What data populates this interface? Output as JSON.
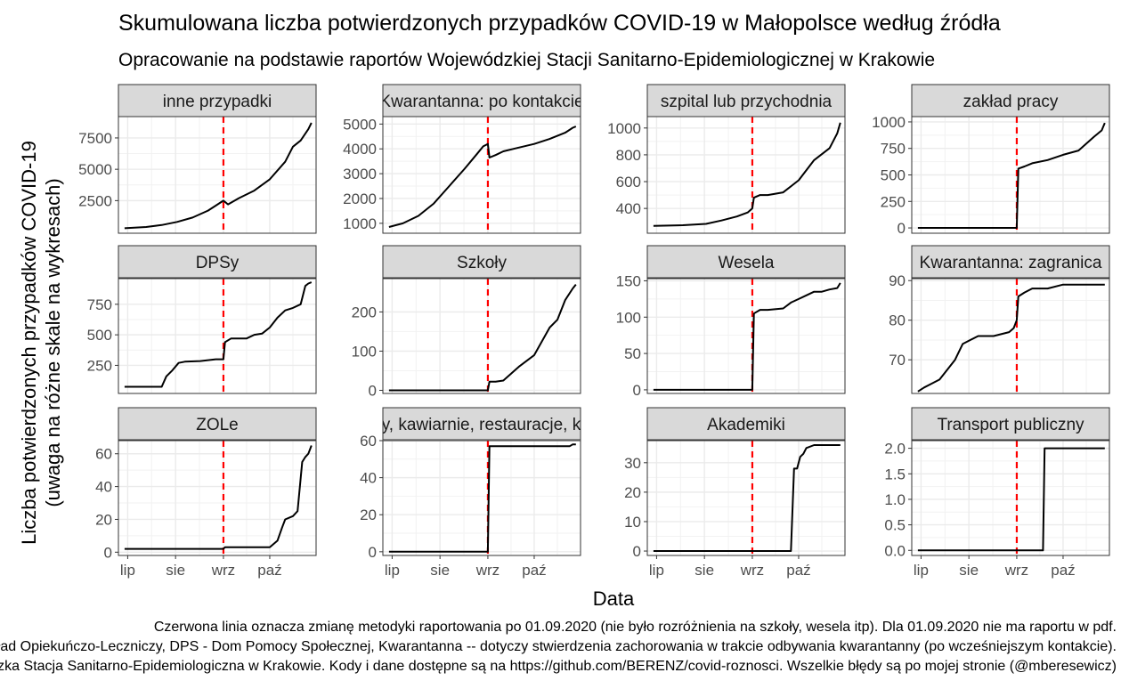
{
  "title": "Skumulowana liczba potwierdzonych przypadków COVID-19 w Małopolsce według źródła",
  "subtitle": "Opracowanie na podstawie raportów Wojewódzkiej Stacji Sanitarno-Epidemiologicznej w Krakowie",
  "xlabel": "Data",
  "ylabel_line1": "Liczba potwierdzonych przypadków COVID-19",
  "ylabel_line2": "(uwaga na różne skale na wykresach)",
  "caption_lines": [
    "Czerwona linia oznacza zmianę metodyki raportowania po 01.09.2020 (nie było rozróżnienia na szkoły, wesela itp). Dla 01.09.2020 nie ma raportu w pdf.",
    "ZOL - Zakład Opiekuńczo-Leczniczy, DPS - Dom Pomocy Społecznej, Kwarantanna -- dotyczy stwierdzenia zachorowania w trakcie odbywania kwarantanny (po wcześniejszym kontakcie).",
    "Źródło: Wojewódzka Stacja Sanitarno-Epidemiologiczna w Krakowie. Kody i dane dostępne są na https://github.com/BERENZ/covid-roznosci. Wszelkie błędy są po mojej stronie (@mberesewicz)"
  ],
  "x_ticks": [
    "lip",
    "sie",
    "wrz",
    "paź"
  ],
  "colors": {
    "line": "#000000",
    "vline": "#ff0000",
    "strip": "#d9d9d9",
    "grid": "#ebebeb"
  },
  "chart_data": {
    "type": "line",
    "x_unit": "day of year 2020",
    "x_range": [
      177,
      305
    ],
    "x_tick_positions": [
      183,
      214,
      245,
      275
    ],
    "vline_x": 245,
    "panels": [
      {
        "name": "inne przypadki",
        "yticks": [
          2500,
          5000,
          7500
        ],
        "ylim": [
          -100,
          9200
        ],
        "x": [
          181,
          195,
          205,
          215,
          225,
          235,
          240,
          245,
          248,
          255,
          265,
          275,
          285,
          290,
          295,
          300,
          302
        ],
        "y": [
          300,
          400,
          550,
          800,
          1150,
          1700,
          2100,
          2500,
          2200,
          2700,
          3300,
          4200,
          5600,
          6800,
          7300,
          8200,
          8700
        ]
      },
      {
        "name": "Kwarantanna: po kontakcie",
        "yticks": [
          1000,
          2000,
          3000,
          4000,
          5000
        ],
        "ylim": [
          600,
          5300
        ],
        "x": [
          181,
          190,
          200,
          210,
          220,
          230,
          238,
          242,
          245,
          246,
          250,
          255,
          265,
          275,
          285,
          295,
          300,
          302
        ],
        "y": [
          850,
          1000,
          1300,
          1800,
          2500,
          3200,
          3800,
          4100,
          4200,
          3650,
          3750,
          3900,
          4050,
          4200,
          4400,
          4650,
          4850,
          4900
        ]
      },
      {
        "name": "szpital lub przychodnia",
        "yticks": [
          400,
          600,
          800,
          1000
        ],
        "ylim": [
          215,
          1085
        ],
        "x": [
          181,
          200,
          215,
          225,
          235,
          242,
          245,
          246,
          250,
          255,
          265,
          275,
          285,
          295,
          300,
          302
        ],
        "y": [
          270,
          275,
          285,
          310,
          340,
          370,
          400,
          480,
          500,
          500,
          520,
          610,
          760,
          850,
          960,
          1040
        ]
      },
      {
        "name": "zakład pracy",
        "yticks": [
          0,
          250,
          500,
          750,
          1000
        ],
        "ylim": [
          -50,
          1050
        ],
        "x": [
          181,
          230,
          244,
          245,
          246,
          250,
          255,
          265,
          275,
          285,
          295,
          300,
          302
        ],
        "y": [
          0,
          0,
          0,
          0,
          560,
          580,
          610,
          640,
          690,
          730,
          860,
          920,
          990
        ]
      },
      {
        "name": "DPSy",
        "yticks": [
          250,
          500,
          750
        ],
        "ylim": [
          20,
          960
        ],
        "x": [
          181,
          195,
          205,
          208,
          212,
          216,
          220,
          230,
          240,
          245,
          246,
          250,
          255,
          260,
          265,
          270,
          275,
          280,
          285,
          290,
          295,
          298,
          300,
          302
        ],
        "y": [
          75,
          75,
          75,
          160,
          210,
          270,
          280,
          285,
          300,
          300,
          440,
          470,
          470,
          470,
          500,
          510,
          560,
          640,
          700,
          720,
          750,
          900,
          920,
          930
        ]
      },
      {
        "name": "Szkoły",
        "yticks": [
          0,
          100,
          200
        ],
        "ylim": [
          -8,
          285
        ],
        "x": [
          181,
          230,
          244,
          245,
          246,
          250,
          255,
          265,
          275,
          285,
          290,
          295,
          300,
          302
        ],
        "y": [
          0,
          0,
          0,
          0,
          22,
          22,
          25,
          60,
          90,
          160,
          180,
          230,
          260,
          270
        ]
      },
      {
        "name": "Wesela",
        "yticks": [
          0,
          50,
          100,
          150
        ],
        "ylim": [
          -5,
          153
        ],
        "x": [
          181,
          230,
          244,
          245,
          246,
          250,
          255,
          265,
          270,
          275,
          280,
          285,
          290,
          295,
          300,
          302
        ],
        "y": [
          0,
          0,
          0,
          0,
          105,
          110,
          110,
          112,
          120,
          125,
          130,
          135,
          135,
          138,
          140,
          147
        ]
      },
      {
        "name": "Kwarantanna: zagranica",
        "yticks": [
          70,
          80,
          90
        ],
        "ylim": [
          61.5,
          90.5
        ],
        "x": [
          181,
          185,
          190,
          195,
          205,
          210,
          215,
          220,
          230,
          240,
          243,
          245,
          246,
          250,
          255,
          265,
          275,
          285,
          290,
          302
        ],
        "y": [
          62,
          63,
          64,
          65,
          70,
          74,
          75,
          76,
          76,
          77,
          78,
          80,
          86,
          87,
          88,
          88,
          89,
          89,
          89,
          89
        ]
      },
      {
        "name": "ZOLe",
        "yticks": [
          0,
          20,
          40,
          60
        ],
        "ylim": [
          -2,
          68
        ],
        "x": [
          181,
          200,
          230,
          245,
          246,
          255,
          265,
          275,
          280,
          283,
          285,
          290,
          293,
          296,
          298,
          300,
          302
        ],
        "y": [
          2,
          2,
          2,
          2,
          3,
          3,
          3,
          3,
          7,
          15,
          20,
          22,
          25,
          55,
          58,
          60,
          65
        ]
      },
      {
        "name": "Puby, kawiarnie, restauracje, kluby",
        "yticks": [
          0,
          20,
          40,
          60
        ],
        "ylim": [
          -2,
          60
        ],
        "x": [
          181,
          230,
          244,
          245,
          246,
          250,
          260,
          270,
          280,
          290,
          298,
          300,
          302
        ],
        "y": [
          0,
          0,
          0,
          0,
          57,
          57,
          57,
          57,
          57,
          57,
          57,
          58,
          58
        ]
      },
      {
        "name": "Akademiki",
        "yticks": [
          0,
          10,
          20,
          30
        ],
        "ylim": [
          -1.5,
          37.5
        ],
        "x": [
          181,
          250,
          260,
          270,
          272,
          274,
          276,
          278,
          280,
          285,
          290,
          295,
          302
        ],
        "y": [
          0,
          0,
          0,
          0,
          28,
          28,
          32,
          33,
          35,
          36,
          36,
          36,
          36
        ]
      },
      {
        "name": "Transport publiczny",
        "yticks": [
          0.0,
          0.5,
          1.0,
          1.5,
          2.0
        ],
        "ylim": [
          -0.1,
          2.15
        ],
        "x": [
          181,
          250,
          260,
          262,
          263,
          270,
          280,
          290,
          302
        ],
        "y": [
          0,
          0,
          0,
          0,
          2,
          2,
          2,
          2,
          2
        ]
      }
    ]
  }
}
